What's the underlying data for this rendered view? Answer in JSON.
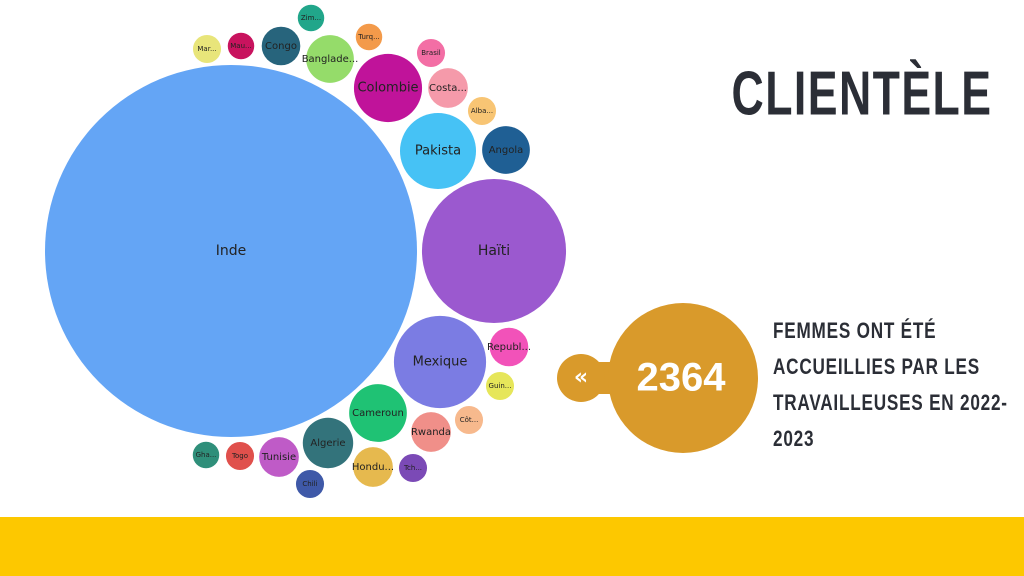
{
  "title": "CLIENTÈLE",
  "chart_data": {
    "type": "bubble",
    "categories": [
      "Inde",
      "Haïti",
      "Mexique",
      "Pakista",
      "Colombie",
      "Angola",
      "Cameroun",
      "Algerie",
      "Rwanda",
      "Tunisie",
      "Hondu...",
      "Costa...",
      "Banglade...",
      "Congo",
      "Republ...",
      "Chili",
      "Togo",
      "Gha...",
      "Tch...",
      "Côt...",
      "Guin...",
      "Brasil",
      "Alba...",
      "Turq...",
      "Zim...",
      "Mau...",
      "Mar..."
    ],
    "values": [
      1580,
      237,
      97,
      66,
      53,
      26,
      38,
      29,
      18,
      18,
      18,
      18,
      26,
      17,
      17,
      9,
      9,
      8,
      9,
      9,
      9,
      9,
      9,
      8,
      8,
      8,
      9
    ],
    "colors": [
      "#64a5f5",
      "#9b59cf",
      "#7b7ce3",
      "#46c2f5",
      "#c0139a",
      "#1f5f94",
      "#1fc274",
      "#33737b",
      "#f08f89",
      "#bf5bc7",
      "#e6b94e",
      "#f59aaa",
      "#95dc6a",
      "#27647c",
      "#f252b9",
      "#3f59a8",
      "#e0504c",
      "#2f8f7a",
      "#7b4ab6",
      "#f7b98d",
      "#e6e65a",
      "#f36ea5",
      "#f8c574",
      "#f39a4a",
      "#21a68a",
      "#c8135e",
      "#e8e57a"
    ]
  },
  "stat": {
    "value": 2364,
    "icon": "«",
    "lines": [
      "FEMMES ONT ÉTÉ",
      "ACCUEILLIES PAR LES",
      "TRAVAILLEUSES EN 2022-",
      "2023"
    ]
  }
}
